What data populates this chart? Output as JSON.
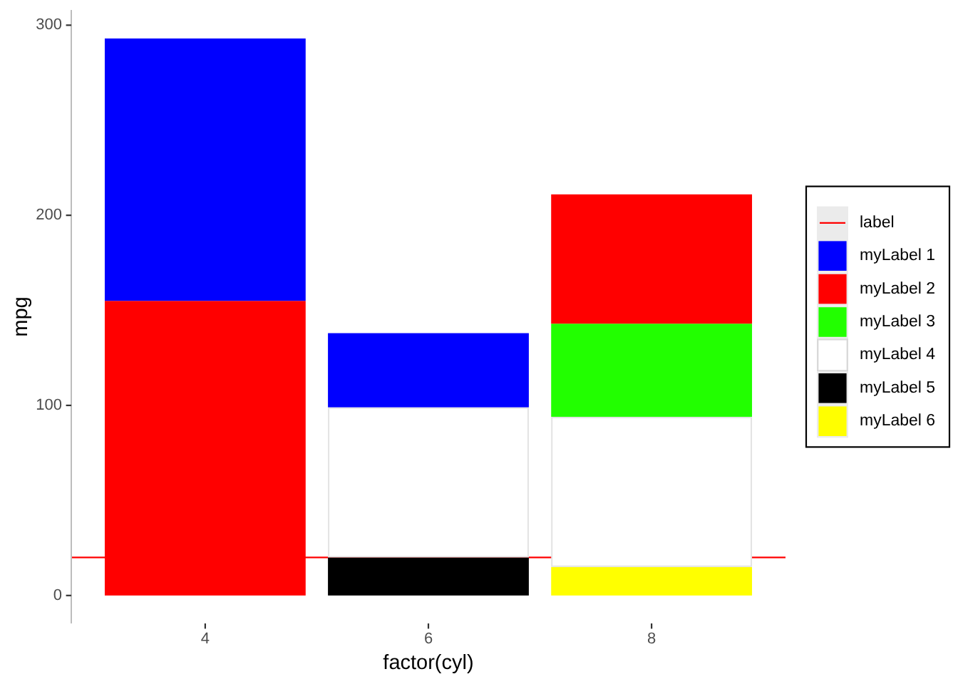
{
  "chart_data": {
    "type": "bar",
    "stacked": true,
    "xlabel": "factor(cyl)",
    "ylabel": "mpg",
    "categories": [
      "4",
      "6",
      "8"
    ],
    "series": [
      {
        "name": "myLabel 6",
        "color": "#ffff00",
        "values": [
          null,
          null,
          15
        ]
      },
      {
        "name": "myLabel 5",
        "color": "#000000",
        "values": [
          null,
          20,
          null
        ]
      },
      {
        "name": "myLabel 4",
        "color": "#ffffff",
        "values": [
          null,
          79,
          79
        ]
      },
      {
        "name": "myLabel 3",
        "color": "#22ff00",
        "values": [
          null,
          null,
          49
        ]
      },
      {
        "name": "myLabel 2",
        "color": "#ff0000",
        "values": [
          155,
          null,
          68
        ]
      },
      {
        "name": "myLabel 1",
        "color": "#0000ff",
        "values": [
          138,
          39,
          null
        ]
      }
    ],
    "ylim": [
      -14.7,
      308
    ],
    "yticks": [
      0,
      100,
      200,
      300
    ],
    "ref_lines": [
      {
        "axis": "y",
        "value": 20,
        "label": "label",
        "color": "#ff0000"
      }
    ],
    "legend": "right"
  }
}
